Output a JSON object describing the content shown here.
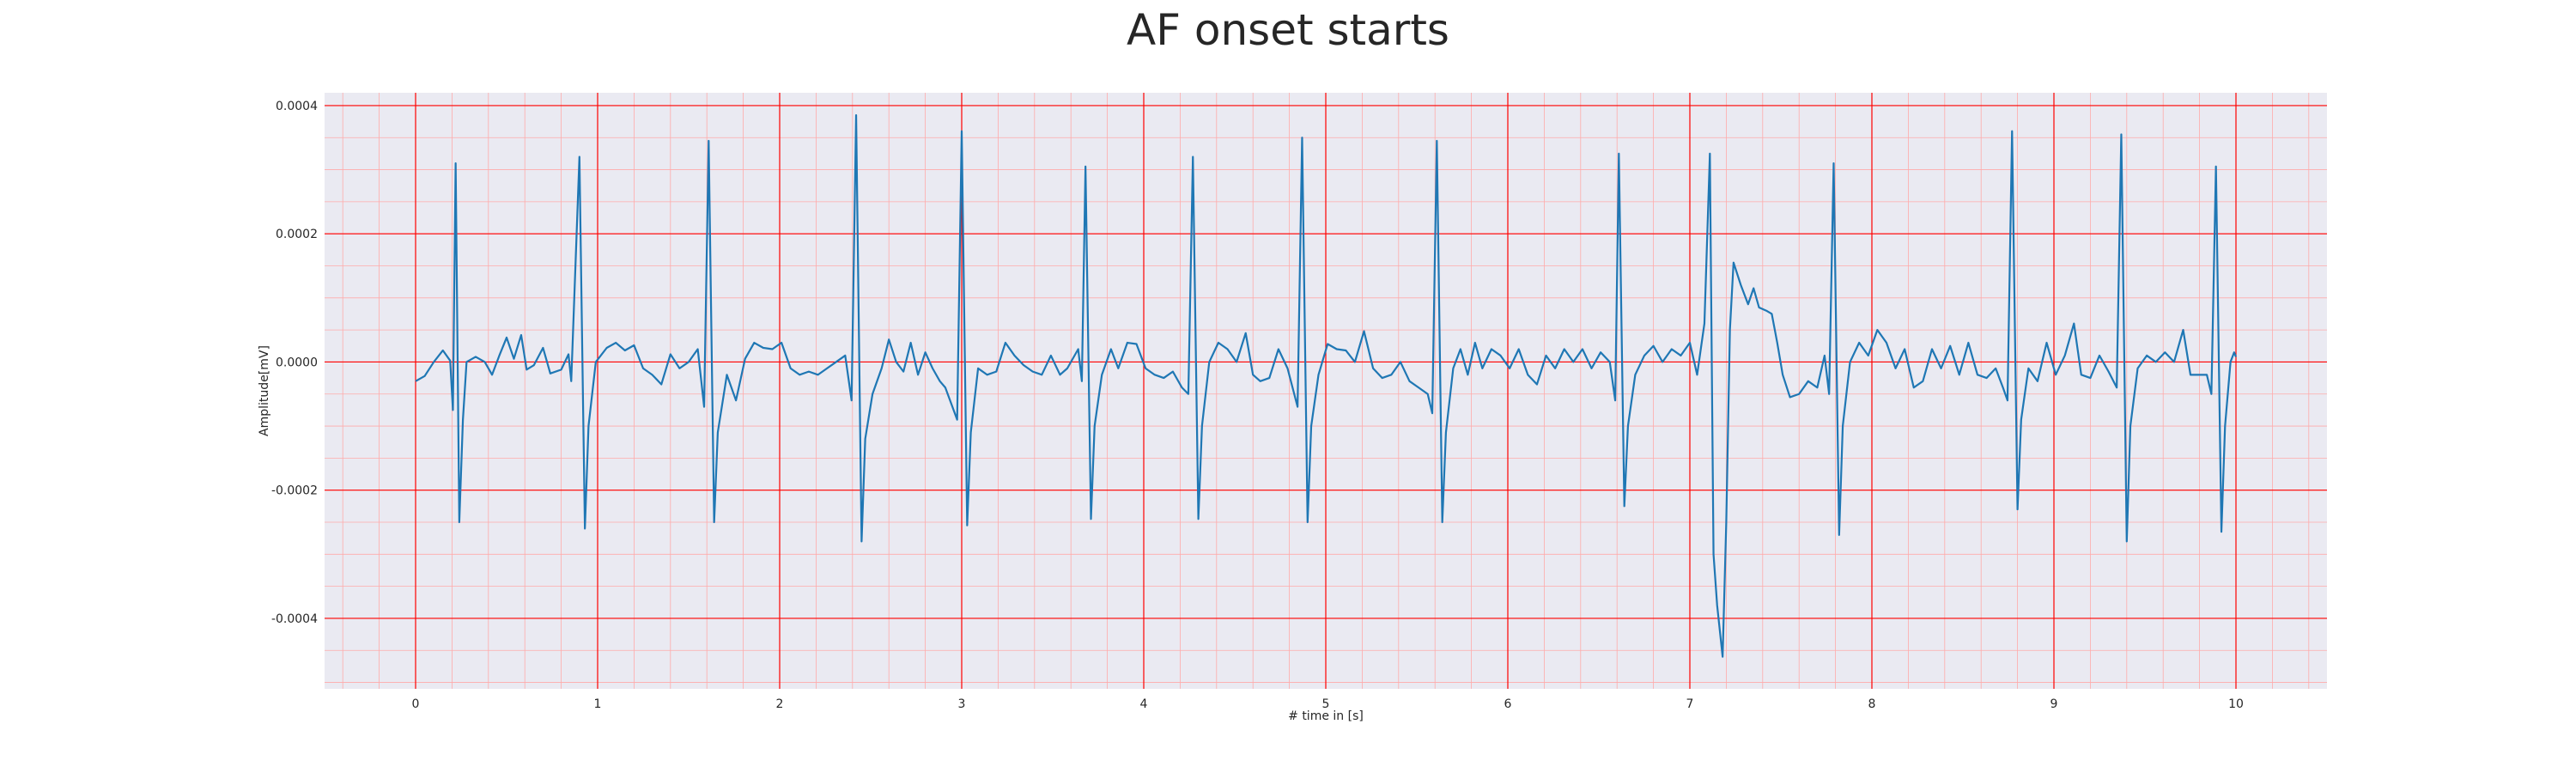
{
  "chart_data": {
    "type": "line",
    "title": "AF onset starts",
    "xlabel": "# time in [s]",
    "ylabel": "Amplitude[mV]",
    "xlim": [
      -0.5,
      10.5
    ],
    "ylim": [
      -0.00051,
      0.00042
    ],
    "xticks": [
      0,
      1,
      2,
      3,
      4,
      5,
      6,
      7,
      8,
      9,
      10
    ],
    "xtick_labels": [
      "0",
      "1",
      "2",
      "3",
      "4",
      "5",
      "6",
      "7",
      "8",
      "9",
      "10"
    ],
    "yticks": [
      0.0004,
      0.0002,
      0.0,
      -0.0002,
      -0.0004
    ],
    "ytick_labels": [
      "0.0004",
      "0.0002",
      "0.0000",
      "-0.0002",
      "-0.0004"
    ],
    "grid": true,
    "minor_grid": true,
    "colors": {
      "line": "#1f77b4",
      "plot_background": "#eaeaf2",
      "major_grid": "#ff0000",
      "minor_grid": "#ffaaaa"
    },
    "series": [
      {
        "points": [
          [
            0.0,
            -3e-05
          ],
          [
            0.05,
            -2.2e-05
          ],
          [
            0.1,
            0.0
          ],
          [
            0.15,
            1.8e-05
          ],
          [
            0.19,
            2e-06
          ],
          [
            0.205,
            -7.5e-05
          ],
          [
            0.22,
            0.00031
          ],
          [
            0.24,
            -0.00025
          ],
          [
            0.26,
            -9e-05
          ],
          [
            0.28,
            0.0
          ],
          [
            0.33,
            8e-06
          ],
          [
            0.38,
            0.0
          ],
          [
            0.42,
            -2e-05
          ],
          [
            0.46,
            1e-05
          ],
          [
            0.5,
            3.8e-05
          ],
          [
            0.54,
            5e-06
          ],
          [
            0.58,
            4.2e-05
          ],
          [
            0.61,
            -1.2e-05
          ],
          [
            0.65,
            -5e-06
          ],
          [
            0.7,
            2.2e-05
          ],
          [
            0.74,
            -1.8e-05
          ],
          [
            0.8,
            -1.2e-05
          ],
          [
            0.84,
            1.2e-05
          ],
          [
            0.855,
            -3e-05
          ],
          [
            0.9,
            0.00032
          ],
          [
            0.93,
            -0.00026
          ],
          [
            0.95,
            -0.0001
          ],
          [
            0.99,
            0.0
          ],
          [
            1.05,
            2.2e-05
          ],
          [
            1.1,
            3e-05
          ],
          [
            1.15,
            1.8e-05
          ],
          [
            1.2,
            2.6e-05
          ],
          [
            1.25,
            -1e-05
          ],
          [
            1.3,
            -2e-05
          ],
          [
            1.35,
            -3.5e-05
          ],
          [
            1.4,
            1.2e-05
          ],
          [
            1.45,
            -1e-05
          ],
          [
            1.5,
            0.0
          ],
          [
            1.55,
            2e-05
          ],
          [
            1.585,
            -7e-05
          ],
          [
            1.61,
            0.000345
          ],
          [
            1.64,
            -0.00025
          ],
          [
            1.66,
            -0.00011
          ],
          [
            1.71,
            -2e-05
          ],
          [
            1.76,
            -6e-05
          ],
          [
            1.81,
            5e-06
          ],
          [
            1.86,
            3e-05
          ],
          [
            1.91,
            2.2e-05
          ],
          [
            1.96,
            2e-05
          ],
          [
            2.01,
            3e-05
          ],
          [
            2.06,
            -1e-05
          ],
          [
            2.11,
            -2e-05
          ],
          [
            2.16,
            -1.5e-05
          ],
          [
            2.21,
            -2e-05
          ],
          [
            2.26,
            -1e-05
          ],
          [
            2.31,
            0.0
          ],
          [
            2.36,
            1e-05
          ],
          [
            2.395,
            -6e-05
          ],
          [
            2.42,
            0.000385
          ],
          [
            2.45,
            -0.00028
          ],
          [
            2.47,
            -0.00012
          ],
          [
            2.51,
            -5e-05
          ],
          [
            2.56,
            -1e-05
          ],
          [
            2.6,
            3.5e-05
          ],
          [
            2.64,
            0.0
          ],
          [
            2.68,
            -1.5e-05
          ],
          [
            2.72,
            3e-05
          ],
          [
            2.76,
            -2e-05
          ],
          [
            2.8,
            1.5e-05
          ],
          [
            2.84,
            -1e-05
          ],
          [
            2.88,
            -3e-05
          ],
          [
            2.91,
            -4e-05
          ],
          [
            2.975,
            -9e-05
          ],
          [
            3.0,
            0.00036
          ],
          [
            3.03,
            -0.000255
          ],
          [
            3.05,
            -0.00011
          ],
          [
            3.09,
            -1e-05
          ],
          [
            3.14,
            -2e-05
          ],
          [
            3.19,
            -1.5e-05
          ],
          [
            3.24,
            3e-05
          ],
          [
            3.29,
            1e-05
          ],
          [
            3.34,
            -5e-06
          ],
          [
            3.39,
            -1.5e-05
          ],
          [
            3.44,
            -2e-05
          ],
          [
            3.49,
            1e-05
          ],
          [
            3.54,
            -2e-05
          ],
          [
            3.58,
            -1e-05
          ],
          [
            3.64,
            2e-05
          ],
          [
            3.66,
            -3e-05
          ],
          [
            3.68,
            0.000305
          ],
          [
            3.71,
            -0.000245
          ],
          [
            3.73,
            -0.0001
          ],
          [
            3.77,
            -2e-05
          ],
          [
            3.82,
            2e-05
          ],
          [
            3.86,
            -1e-05
          ],
          [
            3.91,
            3e-05
          ],
          [
            3.96,
            2.8e-05
          ],
          [
            4.01,
            -1e-05
          ],
          [
            4.06,
            -2e-05
          ],
          [
            4.11,
            -2.5e-05
          ],
          [
            4.16,
            -1.5e-05
          ],
          [
            4.21,
            -4e-05
          ],
          [
            4.245,
            -5e-05
          ],
          [
            4.27,
            0.00032
          ],
          [
            4.3,
            -0.000245
          ],
          [
            4.32,
            -0.0001
          ],
          [
            4.36,
            0.0
          ],
          [
            4.41,
            3e-05
          ],
          [
            4.46,
            2e-05
          ],
          [
            4.51,
            0.0
          ],
          [
            4.56,
            4.5e-05
          ],
          [
            4.6,
            -2e-05
          ],
          [
            4.64,
            -3e-05
          ],
          [
            4.69,
            -2.5e-05
          ],
          [
            4.74,
            2e-05
          ],
          [
            4.79,
            -1e-05
          ],
          [
            4.845,
            -7e-05
          ],
          [
            4.87,
            0.00035
          ],
          [
            4.9,
            -0.00025
          ],
          [
            4.92,
            -0.0001
          ],
          [
            4.96,
            -2e-05
          ],
          [
            5.01,
            2.8e-05
          ],
          [
            5.06,
            2e-05
          ],
          [
            5.11,
            1.8e-05
          ],
          [
            5.16,
            0.0
          ],
          [
            5.21,
            4.8e-05
          ],
          [
            5.26,
            -1e-05
          ],
          [
            5.31,
            -2.5e-05
          ],
          [
            5.36,
            -2e-05
          ],
          [
            5.41,
            0.0
          ],
          [
            5.46,
            -3e-05
          ],
          [
            5.51,
            -4e-05
          ],
          [
            5.56,
            -5e-05
          ],
          [
            5.585,
            -8e-05
          ],
          [
            5.61,
            0.000345
          ],
          [
            5.64,
            -0.00025
          ],
          [
            5.66,
            -0.00011
          ],
          [
            5.7,
            -1e-05
          ],
          [
            5.74,
            2e-05
          ],
          [
            5.78,
            -2e-05
          ],
          [
            5.82,
            3e-05
          ],
          [
            5.86,
            -1e-05
          ],
          [
            5.91,
            2e-05
          ],
          [
            5.96,
            1e-05
          ],
          [
            6.01,
            -1e-05
          ],
          [
            6.06,
            2e-05
          ],
          [
            6.11,
            -2e-05
          ],
          [
            6.16,
            -3.5e-05
          ],
          [
            6.21,
            1e-05
          ],
          [
            6.26,
            -1e-05
          ],
          [
            6.31,
            2e-05
          ],
          [
            6.36,
            0.0
          ],
          [
            6.41,
            2e-05
          ],
          [
            6.46,
            -1e-05
          ],
          [
            6.51,
            1.5e-05
          ],
          [
            6.56,
            0.0
          ],
          [
            6.59,
            -6e-05
          ],
          [
            6.61,
            0.000325
          ],
          [
            6.64,
            -0.000225
          ],
          [
            6.66,
            -0.0001
          ],
          [
            6.7,
            -2e-05
          ],
          [
            6.75,
            1e-05
          ],
          [
            6.8,
            2.5e-05
          ],
          [
            6.85,
            0.0
          ],
          [
            6.9,
            2e-05
          ],
          [
            6.95,
            1e-05
          ],
          [
            7.0,
            3e-05
          ],
          [
            7.04,
            -2e-05
          ],
          [
            7.08,
            6e-05
          ],
          [
            7.11,
            0.000325
          ],
          [
            7.13,
            -0.0003
          ],
          [
            7.15,
            -0.00038
          ],
          [
            7.18,
            -0.00046
          ],
          [
            7.2,
            -0.00025
          ],
          [
            7.22,
            5e-05
          ],
          [
            7.24,
            0.000155
          ],
          [
            7.28,
            0.00012
          ],
          [
            7.32,
            9e-05
          ],
          [
            7.35,
            0.000115
          ],
          [
            7.38,
            8.5e-05
          ],
          [
            7.42,
            8e-05
          ],
          [
            7.45,
            7.5e-05
          ],
          [
            7.48,
            3e-05
          ],
          [
            7.51,
            -2e-05
          ],
          [
            7.55,
            -5.5e-05
          ],
          [
            7.6,
            -5e-05
          ],
          [
            7.65,
            -3e-05
          ],
          [
            7.7,
            -4e-05
          ],
          [
            7.74,
            1e-05
          ],
          [
            7.765,
            -5e-05
          ],
          [
            7.79,
            0.00031
          ],
          [
            7.82,
            -0.00027
          ],
          [
            7.84,
            -0.0001
          ],
          [
            7.88,
            0.0
          ],
          [
            7.93,
            3e-05
          ],
          [
            7.98,
            1e-05
          ],
          [
            8.03,
            5e-05
          ],
          [
            8.08,
            3e-05
          ],
          [
            8.13,
            -1e-05
          ],
          [
            8.18,
            2e-05
          ],
          [
            8.23,
            -4e-05
          ],
          [
            8.28,
            -3e-05
          ],
          [
            8.33,
            2e-05
          ],
          [
            8.38,
            -1e-05
          ],
          [
            8.43,
            2.5e-05
          ],
          [
            8.48,
            -2e-05
          ],
          [
            8.53,
            3e-05
          ],
          [
            8.58,
            -2e-05
          ],
          [
            8.63,
            -2.5e-05
          ],
          [
            8.68,
            -1e-05
          ],
          [
            8.72,
            -4e-05
          ],
          [
            8.745,
            -6e-05
          ],
          [
            8.77,
            0.00036
          ],
          [
            8.8,
            -0.00023
          ],
          [
            8.82,
            -9e-05
          ],
          [
            8.86,
            -1e-05
          ],
          [
            8.91,
            -3e-05
          ],
          [
            8.96,
            3e-05
          ],
          [
            9.01,
            -2e-05
          ],
          [
            9.06,
            1e-05
          ],
          [
            9.11,
            6e-05
          ],
          [
            9.15,
            -2e-05
          ],
          [
            9.2,
            -2.5e-05
          ],
          [
            9.25,
            1e-05
          ],
          [
            9.3,
            -1.5e-05
          ],
          [
            9.345,
            -4e-05
          ],
          [
            9.37,
            0.000355
          ],
          [
            9.4,
            -0.00028
          ],
          [
            9.42,
            -0.0001
          ],
          [
            9.46,
            -1e-05
          ],
          [
            9.51,
            1e-05
          ],
          [
            9.56,
            0.0
          ],
          [
            9.61,
            1.5e-05
          ],
          [
            9.66,
            0.0
          ],
          [
            9.71,
            5e-05
          ],
          [
            9.75,
            -2e-05
          ],
          [
            9.79,
            -2e-05
          ],
          [
            9.84,
            -2e-05
          ],
          [
            9.865,
            -5e-05
          ],
          [
            9.89,
            0.000305
          ],
          [
            9.92,
            -0.000265
          ],
          [
            9.94,
            -0.0001
          ],
          [
            9.97,
            0.0
          ],
          [
            9.99,
            1.5e-05
          ],
          [
            10.0,
            8e-06
          ]
        ]
      }
    ]
  }
}
